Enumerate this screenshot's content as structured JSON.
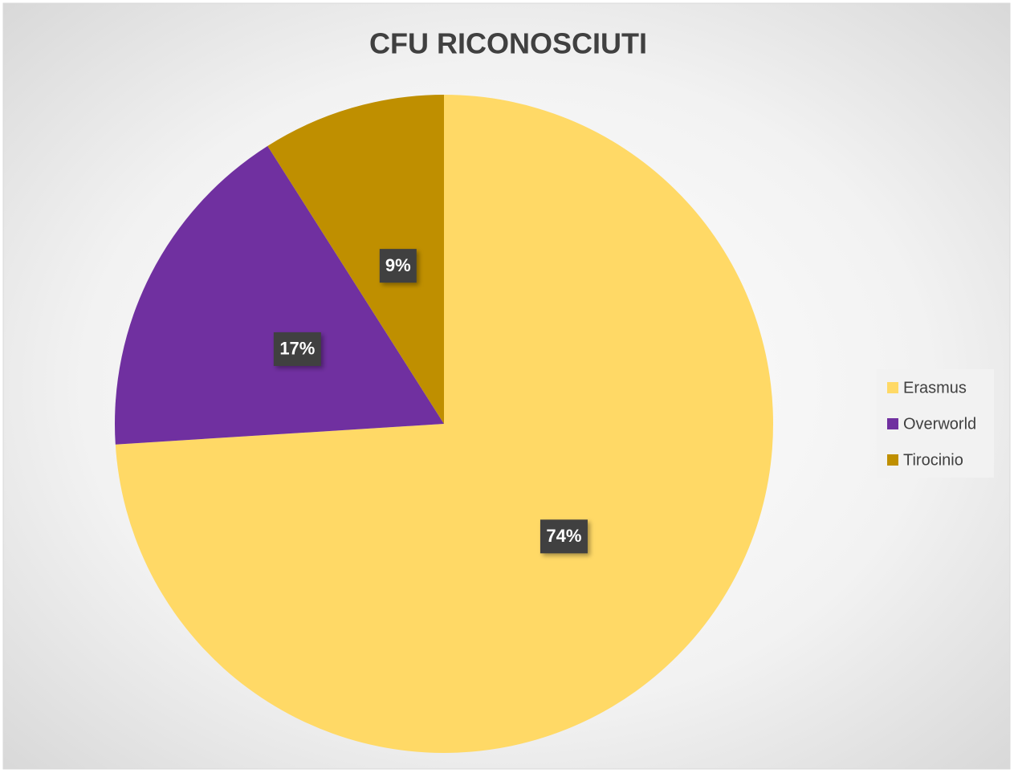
{
  "chart_data": {
    "type": "pie",
    "title": "CFU RICONOSCIUTI",
    "categories": [
      "Erasmus",
      "Overworld",
      "Tirocinio"
    ],
    "values": [
      74,
      17,
      9
    ],
    "value_labels": [
      "74%",
      "17%",
      "9%"
    ],
    "colors": [
      "#ffd966",
      "#7030a0",
      "#bf8f00"
    ],
    "legend": "right"
  }
}
